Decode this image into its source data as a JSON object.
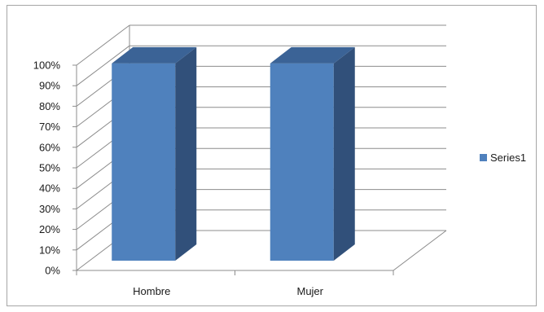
{
  "chart_data": {
    "type": "bar",
    "style": "3d-column",
    "categories": [
      "Hombre",
      "Mujer"
    ],
    "series": [
      {
        "name": "Series1",
        "values": [
          1.0,
          1.0
        ],
        "color": "#4f81bd"
      }
    ],
    "ylim": [
      0,
      1
    ],
    "yticks": [
      0,
      0.1,
      0.2,
      0.3,
      0.4,
      0.5,
      0.6,
      0.7,
      0.8,
      0.9,
      1.0
    ],
    "ytick_labels": [
      "0%",
      "10%",
      "20%",
      "30%",
      "40%",
      "50%",
      "60%",
      "70%",
      "80%",
      "90%",
      "100%"
    ],
    "grid": true,
    "legend": {
      "position": "right",
      "entries": [
        "Series1"
      ]
    },
    "colors": {
      "bar_front": "#4f81bd",
      "bar_side": "#31507a",
      "bar_top": "#3b6396",
      "grid": "#8c8c8c",
      "axis": "#8c8c8c"
    }
  }
}
